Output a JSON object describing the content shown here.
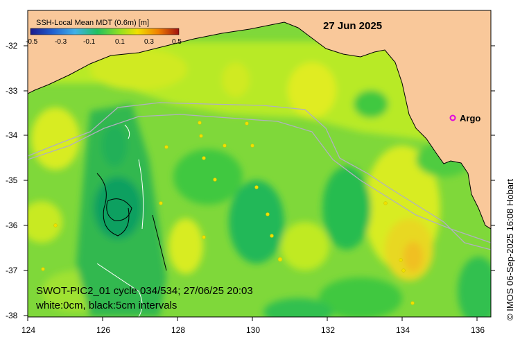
{
  "map": {
    "date_label": "27 Jun 2025",
    "colorbar": {
      "title": "SSH-Local Mean MDT (0.6m) [m]",
      "ticks": [
        "-0.5",
        "-0.3",
        "-0.1",
        "0.1",
        "0.3",
        "0.5"
      ],
      "colors": [
        "#1a1a8c",
        "#2060d0",
        "#40b0e8",
        "#20c060",
        "#90e020",
        "#f0e000",
        "#f08000",
        "#a01010"
      ]
    },
    "x_ticks": [
      "124",
      "126",
      "128",
      "130",
      "132",
      "134",
      "136"
    ],
    "y_ticks": [
      "-32",
      "-33",
      "-34",
      "-35",
      "-36",
      "-37",
      "-38"
    ],
    "info_line1": "SWOT-PIC2_01 cycle 034/534; 27/06/25 20:03",
    "info_line2": "white:0cm, black:5cm intervals",
    "credit": "© IMOS 06-Sep-2025 16:08 Hobart",
    "argo_label": "Argo",
    "colors": {
      "land": "#f9c89a",
      "ocean_base": "#7fd83a",
      "argo_marker": "#e000e0"
    }
  }
}
